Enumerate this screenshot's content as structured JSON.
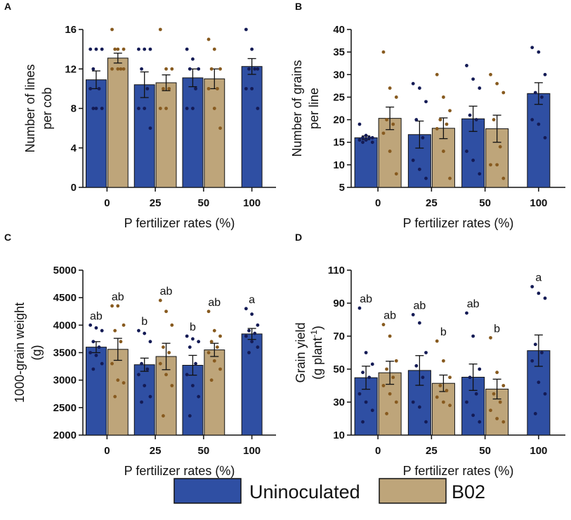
{
  "legend": [
    {
      "name": "Uninoculated",
      "color": "#2f4fa3"
    },
    {
      "name": "B02",
      "color": "#bea57a"
    }
  ],
  "chart_data": [
    {
      "type": "bar",
      "panel": "A",
      "ylabel": [
        "Number of lines",
        "per cob"
      ],
      "xlabel": "P fertilizer rates (%)",
      "categories": [
        "0",
        "25",
        "50",
        "100"
      ],
      "ylim": [
        0,
        16
      ],
      "yticks": [
        0,
        4,
        8,
        12,
        16
      ],
      "series": [
        {
          "point_color": "#141b55",
          "values": [
            10.9,
            10.4,
            11.1,
            12.25
          ],
          "errors": [
            0.9,
            1.3,
            0.9,
            0.8
          ],
          "points": [
            [
              14,
              14,
              14,
              12,
              10,
              10,
              8,
              8,
              8
            ],
            [
              14,
              14,
              14,
              12,
              10,
              8,
              8,
              6
            ],
            [
              14,
              13,
              12,
              12,
              10,
              8,
              8
            ],
            [
              16,
              14,
              12,
              12,
              12,
              10,
              10,
              8
            ]
          ]
        },
        {
          "point_color": "#875a1f",
          "values": [
            13.1,
            10.6,
            11.0,
            null
          ],
          "errors": [
            0.5,
            0.8,
            1.0,
            null
          ],
          "points": [
            [
              16,
              14,
              14,
              14,
              12,
              12,
              12,
              12
            ],
            [
              16,
              12,
              12,
              10,
              10,
              8,
              8
            ],
            [
              15,
              14,
              12,
              12,
              10,
              10,
              8,
              6
            ],
            []
          ]
        }
      ]
    },
    {
      "type": "bar",
      "panel": "B",
      "ylabel": [
        "Number of grains",
        "per line"
      ],
      "xlabel": "P fertilizer rates (%)",
      "categories": [
        "0",
        "25",
        "50",
        "100"
      ],
      "ylim": [
        5,
        40
      ],
      "yticks": [
        5,
        10,
        15,
        20,
        25,
        30,
        35,
        40
      ],
      "series": [
        {
          "point_color": "#141b55",
          "values": [
            16.0,
            16.7,
            20.2,
            25.8
          ],
          "errors": [
            0.4,
            3.0,
            2.8,
            2.4
          ],
          "points": [
            [
              19,
              16.5,
              16,
              16,
              16,
              15.5,
              15.5,
              15,
              15
            ],
            [
              28,
              27,
              24,
              20,
              16,
              11,
              9,
              7
            ],
            [
              32,
              29,
              27,
              21,
              20,
              13,
              11,
              8
            ],
            [
              36,
              35,
              30,
              26,
              25,
              20,
              19,
              16
            ]
          ]
        },
        {
          "point_color": "#875a1f",
          "values": [
            20.3,
            18.1,
            18.0,
            null
          ],
          "errors": [
            2.5,
            2.3,
            3.0,
            null
          ],
          "points": [
            [
              35,
              27,
              25,
              20,
              19,
              17,
              13,
              8
            ],
            [
              30,
              25,
              22,
              20,
              19,
              18,
              13,
              7
            ],
            [
              30,
              28,
              26,
              20,
              14,
              10,
              10,
              7
            ],
            []
          ]
        }
      ]
    },
    {
      "type": "bar",
      "panel": "C",
      "ylabel": [
        "1000-grain weight",
        "(g)"
      ],
      "xlabel": "P fertilizer rates (%)",
      "categories": [
        "0",
        "25",
        "50",
        "100"
      ],
      "ylim": [
        2000,
        5000
      ],
      "yticks": [
        2000,
        2500,
        3000,
        3500,
        4000,
        4500,
        5000
      ],
      "series": [
        {
          "point_color": "#141b55",
          "values": [
            3600,
            3280,
            3270,
            3840
          ],
          "errors": [
            100,
            120,
            180,
            100
          ],
          "letters": [
            "ab",
            "b",
            "b",
            "a"
          ],
          "points": [
            [
              4000,
              3950,
              3900,
              3700,
              3600,
              3500,
              3450,
              3300,
              3200
            ],
            [
              3900,
              3850,
              3700,
              3300,
              3200,
              3100,
              2900,
              2700,
              2600
            ],
            [
              3800,
              3750,
              3700,
              3600,
              3300,
              3100,
              2900,
              2700,
              2350
            ],
            [
              4300,
              4200,
              4000,
              3900,
              3850,
              3800,
              3700,
              3600,
              3500
            ]
          ]
        },
        {
          "point_color": "#875a1f",
          "values": [
            3560,
            3430,
            3550,
            null
          ],
          "errors": [
            200,
            240,
            120,
            null
          ],
          "letters": [
            "ab",
            "ab",
            "ab",
            null
          ],
          "points": [
            [
              4350,
              4350,
              4000,
              3900,
              3700,
              3300,
              3000,
              2950,
              2700
            ],
            [
              4450,
              4250,
              4000,
              3600,
              3500,
              3300,
              3100,
              2900,
              2350
            ],
            [
              4250,
              3900,
              3800,
              3700,
              3600,
              3500,
              3350,
              3200,
              3000
            ],
            []
          ]
        }
      ]
    },
    {
      "type": "bar",
      "panel": "D",
      "ylabel": [
        "Grain yield"
      ],
      "ylabel_unit": {
        "base": "(g plant",
        "sup": "-1",
        "end": ")"
      },
      "xlabel": "P fertilizer rates (%)",
      "categories": [
        "0",
        "25",
        "50",
        "100"
      ],
      "ylim": [
        10,
        110
      ],
      "yticks": [
        10,
        30,
        50,
        70,
        90,
        110
      ],
      "series": [
        {
          "point_color": "#141b55",
          "values": [
            44.8,
            49.2,
            45.1,
            61.2
          ],
          "errors": [
            7,
            9,
            8,
            9.5
          ],
          "letters": [
            "ab",
            "ab",
            "ab",
            "a"
          ],
          "points": [
            [
              87,
              60,
              53,
              48,
              45,
              35,
              30,
              25,
              18
            ],
            [
              83,
              78,
              60,
              52,
              45,
              30,
              27,
              18
            ],
            [
              84,
              70,
              50,
              45,
              35,
              30,
              22,
              18
            ],
            [
              100,
              96,
              93,
              65,
              60,
              55,
              42,
              35,
              23
            ]
          ]
        },
        {
          "point_color": "#875a1f",
          "values": [
            47.8,
            41.4,
            37.9,
            null
          ],
          "errors": [
            7,
            5,
            6,
            null
          ],
          "letters": [
            "ab",
            "b",
            "b",
            null
          ],
          "points": [
            [
              77,
              70,
              55,
              50,
              45,
              40,
              35,
              30,
              23
            ],
            [
              67,
              55,
              45,
              40,
              37,
              33,
              30,
              28
            ],
            [
              69,
              48,
              40,
              35,
              30,
              25,
              20,
              18
            ],
            []
          ]
        }
      ]
    }
  ]
}
